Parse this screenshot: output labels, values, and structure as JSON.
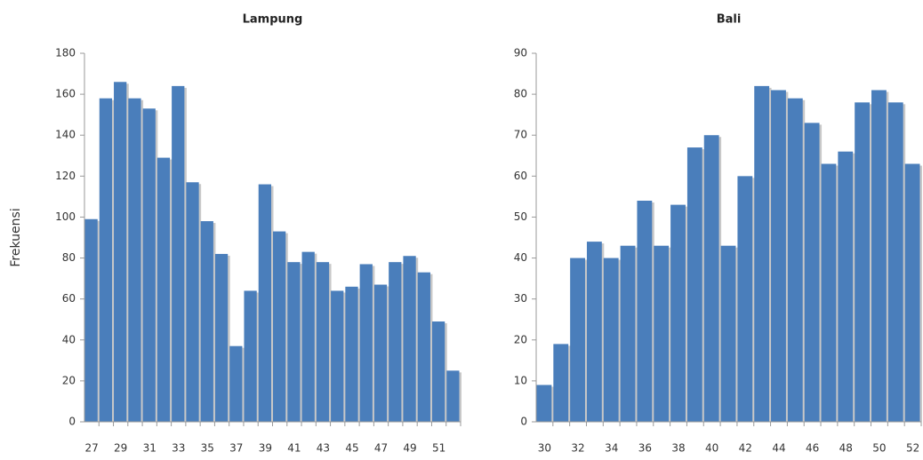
{
  "chart_data": [
    {
      "type": "bar",
      "title": "Lampung",
      "y_label": "Frekuensi",
      "color": "#4a7ebb",
      "categories": [
        "27",
        null,
        "29",
        null,
        "31",
        null,
        "33",
        null,
        "35",
        null,
        "37",
        null,
        "39",
        null,
        "41",
        null,
        "43",
        null,
        "45",
        null,
        "47",
        null,
        "49",
        null,
        "51",
        null
      ],
      "values": [
        99,
        158,
        166,
        158,
        153,
        129,
        164,
        117,
        98,
        82,
        37,
        64,
        116,
        93,
        78,
        83,
        78,
        64,
        66,
        77,
        67,
        78,
        81,
        73,
        49,
        25
      ],
      "ylim": [
        0,
        180
      ],
      "yticks": [
        0,
        20,
        40,
        60,
        80,
        100,
        120,
        140,
        160,
        180
      ]
    },
    {
      "type": "bar",
      "title": "Bali",
      "color": "#4a7ebb",
      "categories": [
        "30",
        null,
        "32",
        null,
        "34",
        null,
        "36",
        null,
        "38",
        null,
        "40",
        null,
        "42",
        null,
        "44",
        null,
        "46",
        null,
        "48",
        null,
        "50",
        null,
        "52"
      ],
      "values": [
        9,
        19,
        40,
        44,
        40,
        43,
        54,
        43,
        53,
        67,
        70,
        43,
        60,
        82,
        81,
        79,
        73,
        63,
        66,
        78,
        81,
        78,
        63
      ],
      "ylim": [
        0,
        90
      ],
      "yticks": [
        0,
        10,
        20,
        30,
        40,
        50,
        60,
        70,
        80,
        90
      ]
    }
  ]
}
